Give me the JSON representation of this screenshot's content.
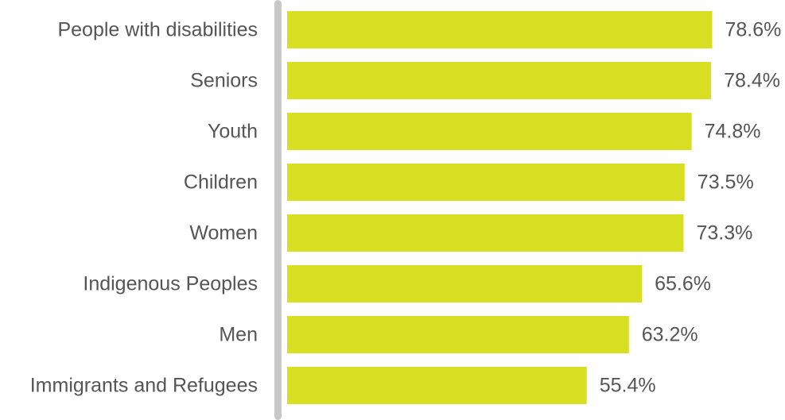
{
  "chart_data": {
    "type": "bar",
    "orientation": "horizontal",
    "categories": [
      "People with disabilities",
      "Seniors",
      "Youth",
      "Children",
      "Women",
      "Indigenous Peoples",
      "Men",
      "Immigrants and Refugees"
    ],
    "values": [
      78.6,
      78.4,
      74.8,
      73.5,
      73.3,
      65.6,
      63.2,
      55.4
    ],
    "value_labels": [
      "78.6%",
      "78.4%",
      "74.8%",
      "73.5%",
      "73.3%",
      "65.6%",
      "63.2%",
      "55.4%"
    ],
    "xlim": [
      0,
      100
    ],
    "grid": false,
    "legend": "none",
    "colors": {
      "bar": "#d8df22",
      "axis": "#c8c8c8",
      "text": "#555555"
    }
  }
}
